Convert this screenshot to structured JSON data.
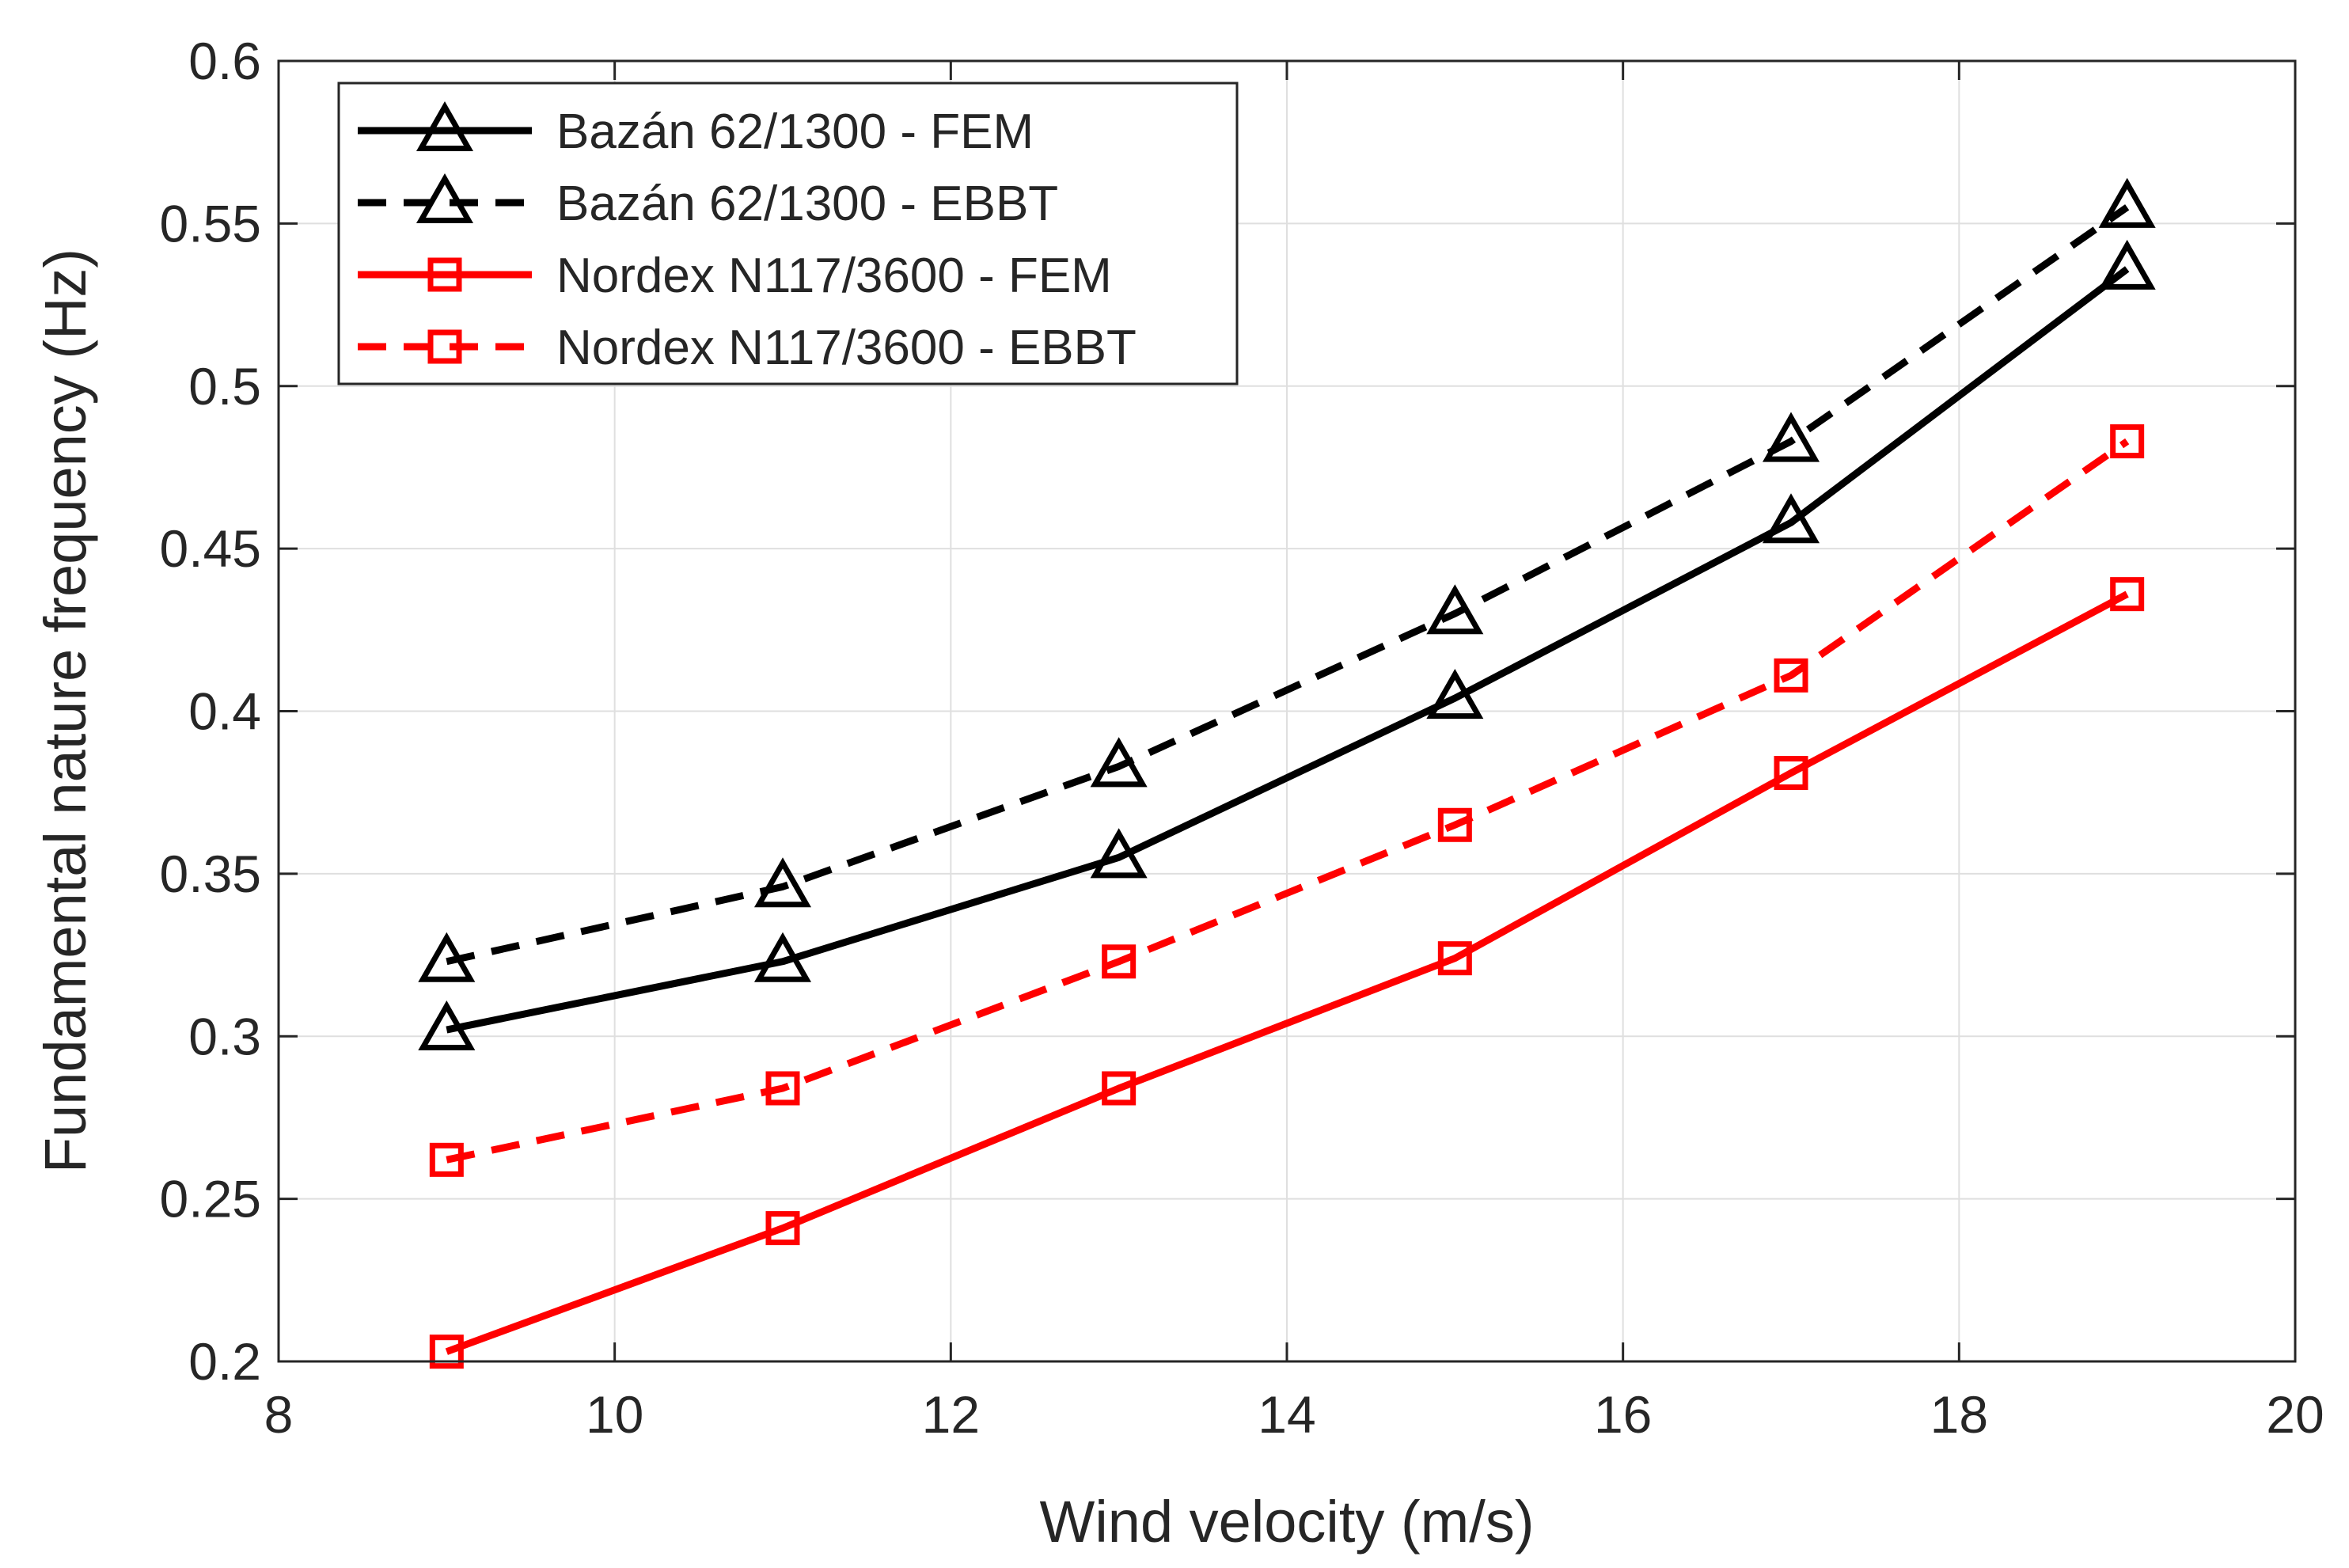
{
  "chart_data": {
    "type": "line",
    "title": "",
    "xlabel": "Wind velocity (m/s)",
    "ylabel": "Fundamental nature frequency (Hz)",
    "xlim": [
      8,
      20
    ],
    "ylim": [
      0.2,
      0.6
    ],
    "xticks": [
      8,
      10,
      12,
      14,
      16,
      18,
      20
    ],
    "yticks": [
      0.2,
      0.25,
      0.3,
      0.35,
      0.4,
      0.45,
      0.5,
      0.55,
      0.6
    ],
    "xtick_labels": [
      "8",
      "10",
      "12",
      "14",
      "16",
      "18",
      "20"
    ],
    "ytick_labels": [
      "0.2",
      "0.25",
      "0.3",
      "0.35",
      "0.4",
      "0.45",
      "0.5",
      "0.55",
      "0.6"
    ],
    "grid": true,
    "legend_position": "top-left",
    "x": [
      9,
      11,
      13,
      15,
      17,
      19
    ],
    "series": [
      {
        "name": "Bazán 62/1300 - FEM",
        "color": "#000000",
        "line_style": "solid",
        "marker": "triangle",
        "values": [
          0.302,
          0.323,
          0.355,
          0.404,
          0.458,
          0.536
        ]
      },
      {
        "name": "Bazán 62/1300 - EBBT",
        "color": "#000000",
        "line_style": "dashed",
        "marker": "triangle",
        "values": [
          0.323,
          0.346,
          0.383,
          0.43,
          0.483,
          0.555
        ]
      },
      {
        "name": "Nordex N117/3600 - FEM",
        "color": "#ff0000",
        "line_style": "solid",
        "marker": "square",
        "values": [
          0.203,
          0.241,
          0.284,
          0.324,
          0.381,
          0.436
        ]
      },
      {
        "name": "Nordex N117/3600 - EBBT",
        "color": "#ff0000",
        "line_style": "dashed",
        "marker": "square",
        "values": [
          0.262,
          0.284,
          0.323,
          0.365,
          0.411,
          0.483
        ]
      }
    ]
  }
}
